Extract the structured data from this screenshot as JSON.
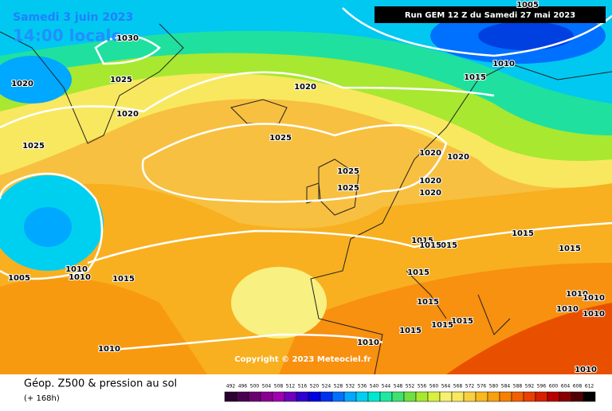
{
  "header": {
    "date": "Samedi 3 juin 2023",
    "time": "14:00 locale",
    "run": "Run GEM 12 Z du Samedi 27 mai 2023"
  },
  "copyright": "Copyright © 2023 Meteociel.fr",
  "footer": {
    "title": "Géop. Z500 & pression au sol",
    "subtitle": "(+ 168h)"
  },
  "legend": {
    "labels": [
      492,
      496,
      500,
      504,
      508,
      512,
      516,
      520,
      524,
      528,
      532,
      536,
      540,
      544,
      548,
      552,
      556,
      560,
      564,
      568,
      572,
      576,
      580,
      584,
      588,
      592,
      596,
      600,
      604,
      608,
      612
    ],
    "colors": [
      "#2a0030",
      "#4a0050",
      "#6a0070",
      "#8a0090",
      "#a000b0",
      "#7000c0",
      "#3000d0",
      "#0000e0",
      "#0030f0",
      "#0070ff",
      "#00a8ff",
      "#00d0f0",
      "#00e8d0",
      "#20e8a0",
      "#40e070",
      "#70e040",
      "#a8e830",
      "#d8f040",
      "#f8f070",
      "#f8e860",
      "#f8d040",
      "#f8b820",
      "#f8a010",
      "#f88000",
      "#f06000",
      "#e84000",
      "#d82000",
      "#b80000",
      "#880000",
      "#500000",
      "#000000"
    ]
  },
  "isobar_labels": [
    "1030",
    "1025",
    "1020",
    "1020",
    "1015",
    "1010",
    "1005",
    "1020",
    "1025",
    "1025",
    "1020",
    "1020",
    "1025",
    "1025",
    "1020",
    "1020",
    "1015",
    "1015",
    "1015",
    "1015",
    "1015",
    "1010",
    "1010",
    "1005",
    "1015",
    "1015",
    "1015",
    "1015",
    "1015",
    "1015",
    "1010",
    "1010",
    "1010",
    "1010",
    "1010",
    "1010",
    "1010"
  ]
}
